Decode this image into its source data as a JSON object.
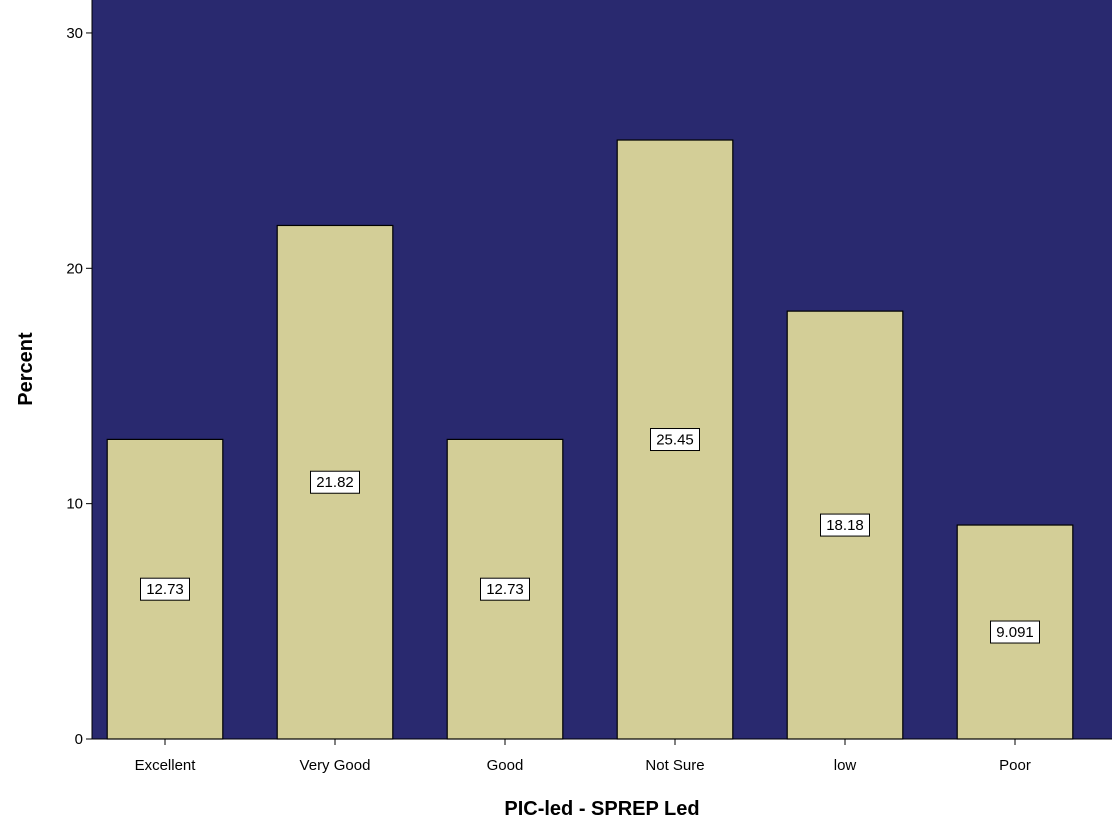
{
  "chart_data": {
    "type": "bar",
    "title": "",
    "xlabel": "PIC-led - SPREP Led",
    "ylabel": "Percent",
    "categories": [
      "Excellent",
      "Very Good",
      "Good",
      "Not Sure",
      "low",
      "Poor"
    ],
    "values": [
      12.73,
      21.82,
      12.73,
      25.45,
      18.18,
      9.091
    ],
    "data_labels": [
      "12.73",
      "21.82",
      "12.73",
      "25.45",
      "18.18",
      "9.091"
    ],
    "yticks": [
      0,
      10,
      20,
      30
    ],
    "ylim": [
      0,
      31.4
    ],
    "grid": false,
    "legend": "none",
    "colors": {
      "plot_background": "#29296f",
      "bar_fill": "#d3ce97",
      "bar_stroke": "#000000",
      "label_box": "#ffffff"
    }
  }
}
